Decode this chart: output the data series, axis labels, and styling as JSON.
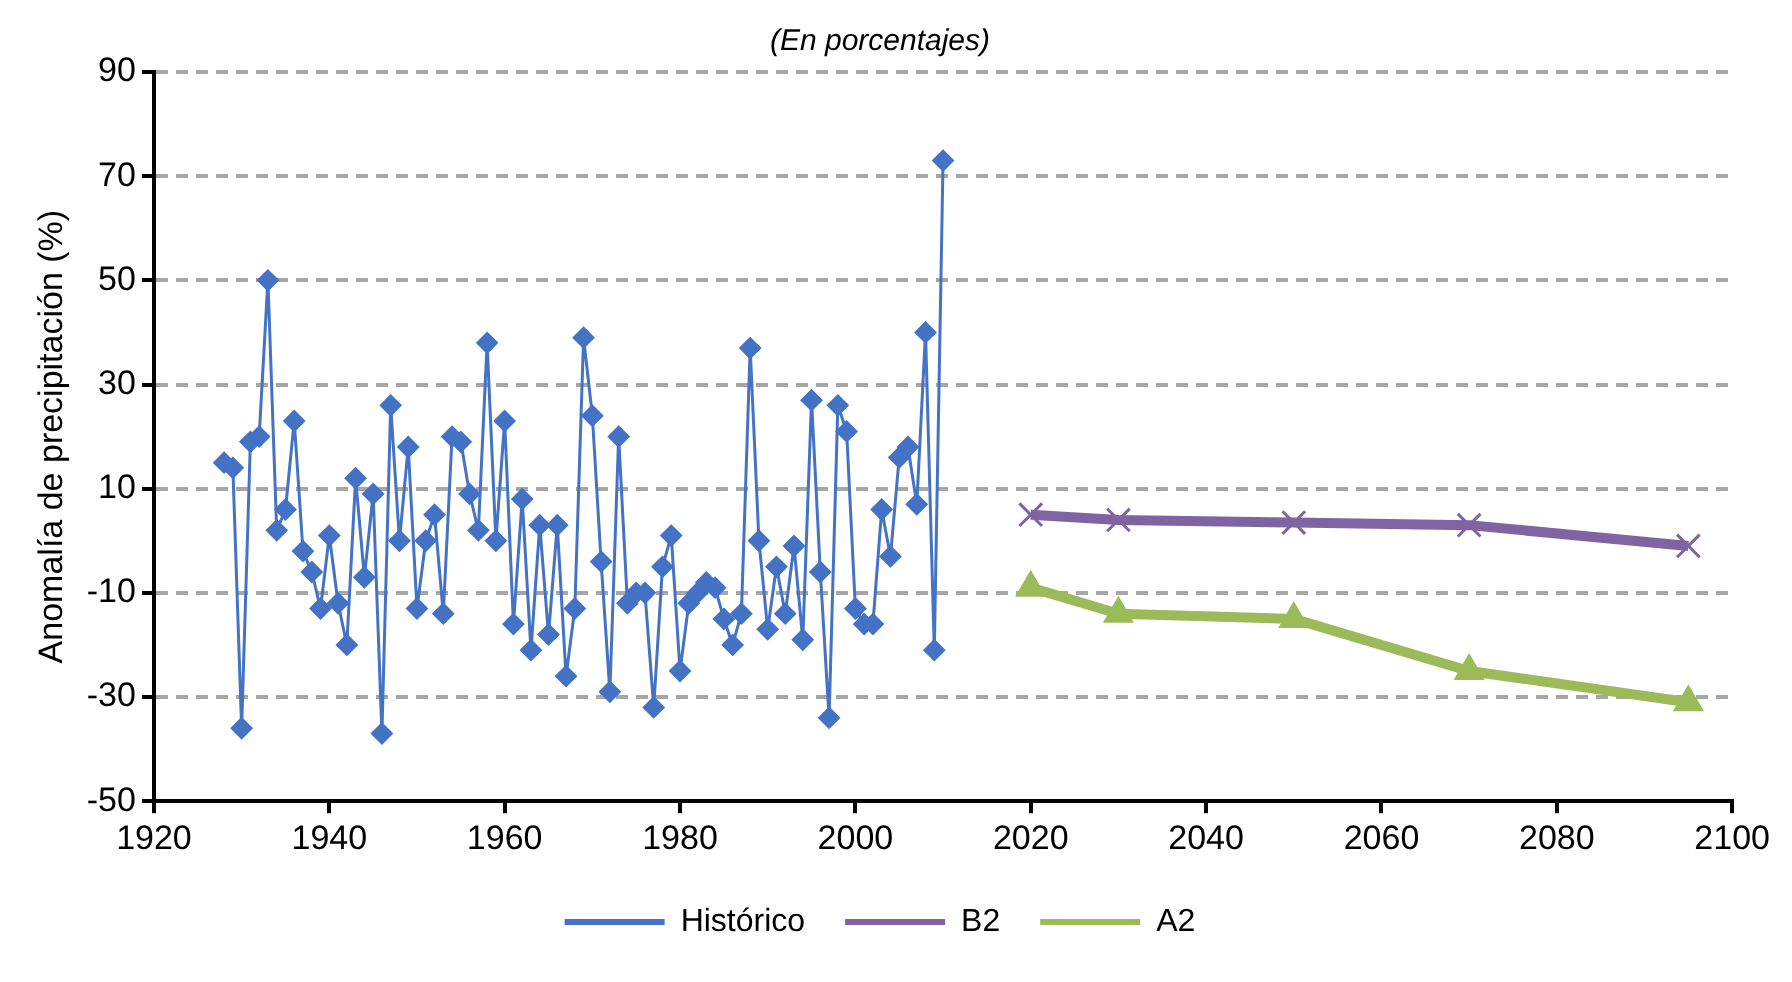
{
  "chart_data": {
    "type": "line",
    "subtitle": "(En porcentajes)",
    "ylabel": "Anomalía de precipitación (%)",
    "xlim": [
      1920,
      2100
    ],
    "xticks": [
      1920,
      1940,
      1960,
      1980,
      2000,
      2020,
      2040,
      2060,
      2080,
      2100
    ],
    "ylim": [
      -50,
      90
    ],
    "yticks": [
      -50,
      -30,
      -10,
      10,
      30,
      50,
      70,
      90
    ],
    "grid": "y",
    "legend": "bottom",
    "series": [
      {
        "name": "Histórico",
        "color": "#4472c4",
        "marker": "diamond",
        "x": [
          1928,
          1929,
          1930,
          1931,
          1932,
          1933,
          1934,
          1935,
          1936,
          1937,
          1938,
          1939,
          1940,
          1941,
          1942,
          1943,
          1944,
          1945,
          1946,
          1947,
          1948,
          1949,
          1950,
          1951,
          1952,
          1953,
          1954,
          1955,
          1956,
          1957,
          1958,
          1959,
          1960,
          1961,
          1962,
          1963,
          1964,
          1965,
          1966,
          1967,
          1968,
          1969,
          1970,
          1971,
          1972,
          1973,
          1974,
          1975,
          1976,
          1977,
          1978,
          1979,
          1980,
          1981,
          1982,
          1983,
          1984,
          1985,
          1986,
          1987,
          1988,
          1989,
          1990,
          1991,
          1992,
          1993,
          1994,
          1995,
          1996,
          1997,
          1998,
          1999,
          2000,
          2001,
          2002,
          2003,
          2004,
          2005,
          2006,
          2007,
          2008,
          2009,
          2010
        ],
        "values": [
          15,
          14,
          -36,
          19,
          20,
          50,
          2,
          6,
          23,
          -2,
          -6,
          -13,
          1,
          -12,
          -20,
          12,
          -7,
          9,
          -37,
          26,
          0,
          18,
          -13,
          0,
          5,
          -14,
          20,
          19,
          9,
          2,
          38,
          0,
          23,
          -16,
          8,
          -21,
          3,
          -18,
          3,
          -26,
          -13,
          39,
          24,
          -4,
          -29,
          20,
          -12,
          -10,
          -10,
          -32,
          -5,
          1,
          -25,
          -12,
          -10,
          -8,
          -9,
          -15,
          -20,
          -14,
          37,
          0,
          -17,
          -5,
          -14,
          -1,
          -19,
          27,
          -6,
          -34,
          26,
          21,
          -13,
          -16,
          -16,
          6,
          -3,
          16,
          18,
          7,
          40,
          -21,
          73
        ]
      },
      {
        "name": "B2",
        "color": "#8064a2",
        "marker": "cross",
        "x": [
          2020,
          2030,
          2050,
          2070,
          2095
        ],
        "values": [
          5,
          4,
          3.5,
          3,
          -1
        ]
      },
      {
        "name": "A2",
        "color": "#9bbb59",
        "marker": "triangle",
        "x": [
          2020,
          2030,
          2050,
          2070,
          2095
        ],
        "values": [
          -9,
          -14,
          -15,
          -25,
          -31
        ]
      }
    ]
  }
}
